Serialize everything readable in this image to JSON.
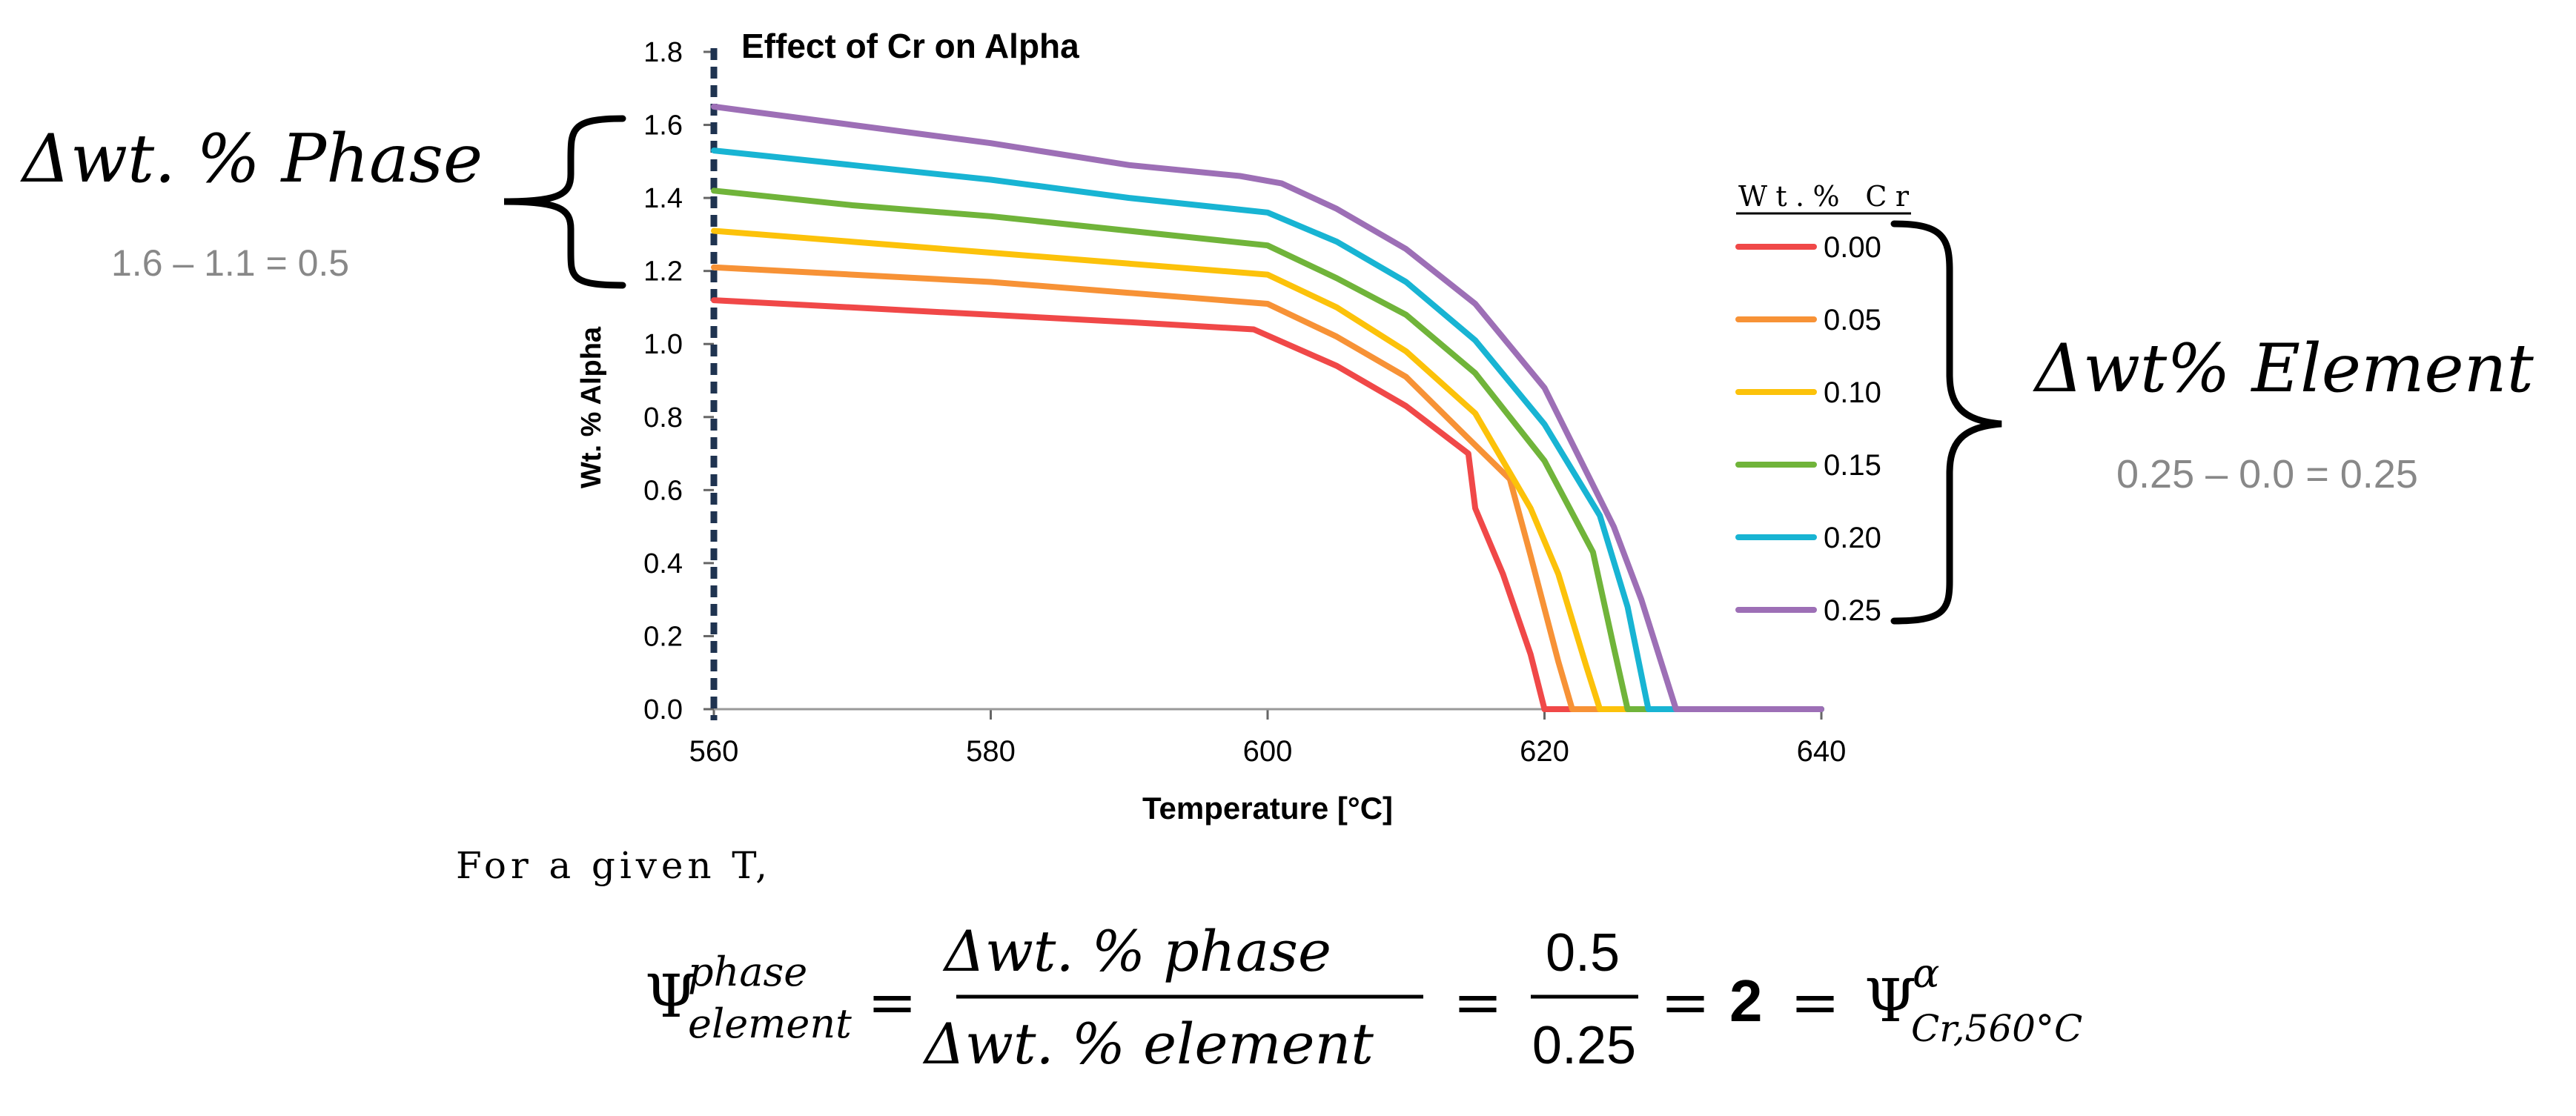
{
  "chart_data": {
    "type": "line",
    "title": "Effect of Cr on Alpha",
    "xlabel": "Temperature [°C]",
    "ylabel": "Wt. % Alpha",
    "xlim": [
      560,
      640
    ],
    "ylim": [
      0.0,
      1.8
    ],
    "x_ticks": [
      "560",
      "580",
      "600",
      "620",
      "640"
    ],
    "y_ticks": [
      "0.0",
      "0.2",
      "0.4",
      "0.6",
      "0.8",
      "1.0",
      "1.2",
      "1.4",
      "1.6",
      "1.8"
    ],
    "grid": false,
    "legend_title": "Wt.% Cr",
    "legend_position": "right",
    "reference_line": {
      "x": 560,
      "style": "dashed",
      "color": "#1f3350"
    },
    "series": [
      {
        "name": "0.00",
        "color": "#f04848",
        "x": [
          560,
          570,
          580,
          590,
          599,
          605,
          610,
          614.5,
          615,
          617,
          619,
          620,
          625,
          630,
          640
        ],
        "y": [
          1.12,
          1.1,
          1.08,
          1.06,
          1.04,
          0.94,
          0.83,
          0.7,
          0.55,
          0.37,
          0.15,
          0.0,
          0.0,
          0.0,
          0.0
        ]
      },
      {
        "name": "0.05",
        "color": "#f79236",
        "x": [
          560,
          570,
          580,
          590,
          600,
          605,
          610,
          614,
          617.5,
          619,
          621,
          622,
          625,
          630,
          640
        ],
        "y": [
          1.21,
          1.19,
          1.17,
          1.14,
          1.11,
          1.02,
          0.91,
          0.76,
          0.63,
          0.42,
          0.13,
          0.0,
          0.0,
          0.0,
          0.0
        ]
      },
      {
        "name": "0.10",
        "color": "#fcc20a",
        "x": [
          560,
          570,
          580,
          590,
          600,
          605,
          610,
          615,
          619,
          621,
          623,
          624,
          630,
          640
        ],
        "y": [
          1.31,
          1.28,
          1.25,
          1.22,
          1.19,
          1.1,
          0.98,
          0.81,
          0.55,
          0.37,
          0.12,
          0.0,
          0.0,
          0.0
        ]
      },
      {
        "name": "0.15",
        "color": "#70b43a",
        "x": [
          560,
          570,
          580,
          590,
          600,
          605,
          610,
          615,
          620,
          623.5,
          625,
          626,
          630,
          640
        ],
        "y": [
          1.42,
          1.38,
          1.35,
          1.31,
          1.27,
          1.18,
          1.08,
          0.92,
          0.68,
          0.43,
          0.17,
          0.0,
          0.0,
          0.0
        ]
      },
      {
        "name": "0.20",
        "color": "#18b4d3",
        "x": [
          560,
          570,
          580,
          590,
          600,
          605,
          610,
          615,
          620,
          624,
          626,
          627.5,
          630,
          640
        ],
        "y": [
          1.53,
          1.49,
          1.45,
          1.4,
          1.36,
          1.28,
          1.17,
          1.01,
          0.78,
          0.53,
          0.28,
          0.0,
          0.0,
          0.0
        ]
      },
      {
        "name": "0.25",
        "color": "#9d6fb6",
        "x": [
          560,
          570,
          580,
          585,
          590,
          598,
          601,
          605,
          610,
          615,
          620,
          625,
          627,
          629.5,
          630,
          640
        ],
        "y": [
          1.65,
          1.6,
          1.55,
          1.52,
          1.49,
          1.46,
          1.44,
          1.37,
          1.26,
          1.11,
          0.88,
          0.5,
          0.3,
          0.0,
          0.0,
          0.0
        ]
      }
    ]
  },
  "annotations": {
    "phase_label": "Δwt. % Phase",
    "phase_calc": "1.6 – 1.1 = 0.5",
    "element_label": "Δwt% Element",
    "element_calc": "0.25 – 0.0 = 0.25",
    "given_t": "For a given T,",
    "equation": {
      "psi": "Ψ",
      "psi_sup": "phase",
      "psi_sub": "element",
      "equals_1": "=",
      "frac_num": "Δwt. % phase",
      "frac_den": "Δwt. % element",
      "equals_2": "=",
      "value_num": "0.5",
      "value_den": "0.25",
      "equals_3": "=",
      "result": "2",
      "equals_4": "=",
      "rhs_psi": "Ψ",
      "rhs_sup": "α",
      "rhs_sub": "Cr,560°C"
    }
  },
  "colors": {
    "axis": "#222222",
    "gray_text": "#888888",
    "text": "#000000"
  }
}
